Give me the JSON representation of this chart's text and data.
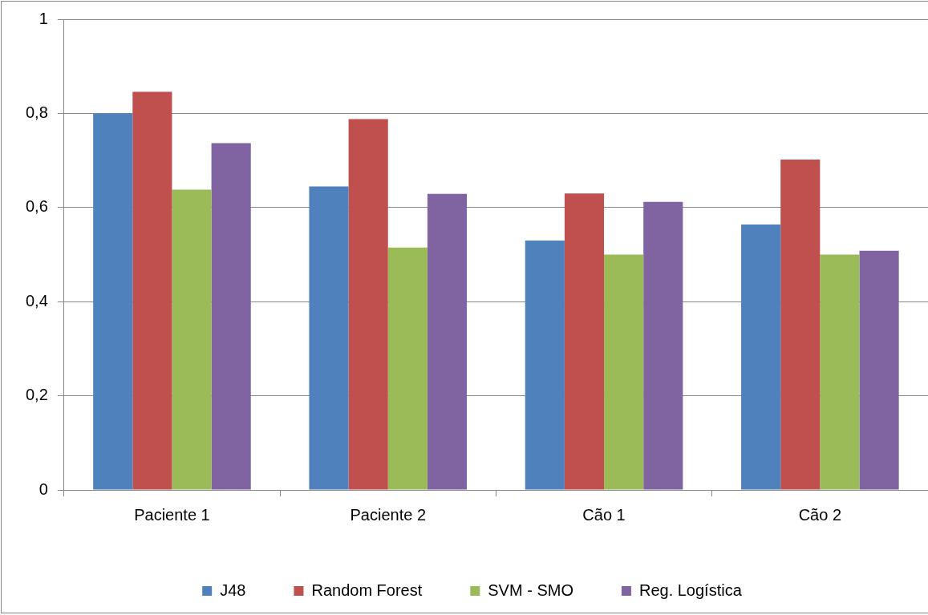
{
  "chart_data": {
    "type": "bar",
    "categories": [
      "Paciente 1",
      "Paciente 2",
      "Cão 1",
      "Cão 2"
    ],
    "series": [
      {
        "name": "J48",
        "color": "#4f81bd",
        "values": [
          0.8,
          0.645,
          0.53,
          0.564
        ]
      },
      {
        "name": "Random Forest",
        "color": "#c0504d",
        "values": [
          0.846,
          0.788,
          0.63,
          0.702
        ]
      },
      {
        "name": "SVM - SMO",
        "color": "#9bbb59",
        "values": [
          0.638,
          0.515,
          0.5,
          0.5
        ]
      },
      {
        "name": "Reg. Logística",
        "color": "#8064a2",
        "values": [
          0.737,
          0.629,
          0.612,
          0.508
        ]
      }
    ],
    "ylim": [
      0,
      1
    ],
    "yticks": [
      {
        "value": 0,
        "label": "0"
      },
      {
        "value": 0.2,
        "label": "0,2"
      },
      {
        "value": 0.4,
        "label": "0,4"
      },
      {
        "value": 0.6,
        "label": "0,6"
      },
      {
        "value": 0.8,
        "label": "0,8"
      },
      {
        "value": 1,
        "label": "1"
      }
    ],
    "grid": "y",
    "legend": "bottom"
  }
}
